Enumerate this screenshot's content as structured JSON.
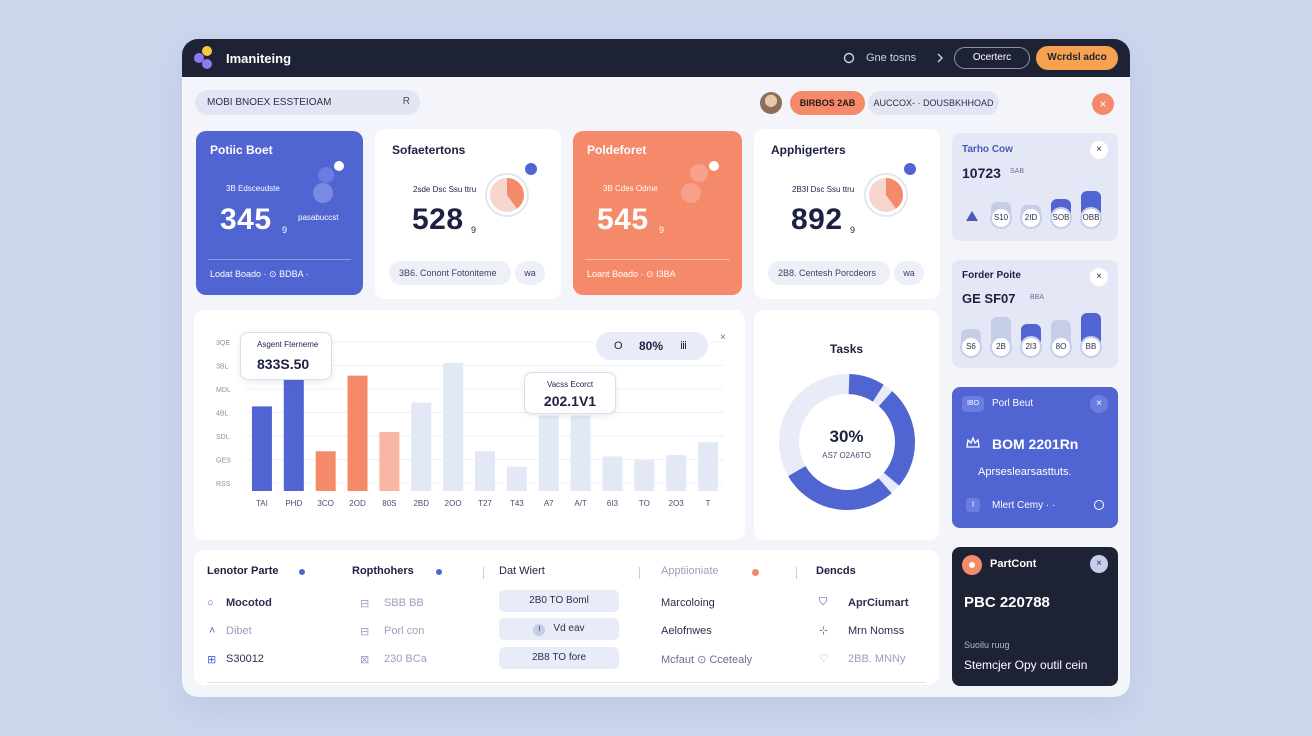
{
  "topbar": {
    "brand": "Imaniteing",
    "link": "Gne tosns",
    "outline_button": "Ocerterc",
    "accent_button": "Wcrdsl adco"
  },
  "toolbar": {
    "search_value": "MOBI BNOEX ESSTEIOAM",
    "search_icon_label": "R",
    "pill_orange": "BIRBOS 2AB",
    "pill_grey": "AUCCOX- · DOUSBKHHOAD",
    "pill_close": "×"
  },
  "stats": [
    {
      "title": "Potiic Boet",
      "sub": "3B Edsceudste",
      "value": "345",
      "unit": "9",
      "aside": "pasabuccst",
      "footer": "Lodat Boado  ·  ⊙  BDBA  ·"
    },
    {
      "title": "Sofaetertons",
      "sub": "2sde Dsc Ssu ttru",
      "value": "528",
      "unit": "9",
      "footer_left": "3B6.  Conont Fotoniteme",
      "footer_right": "wa"
    },
    {
      "title": "Poldeforet",
      "sub": "3B Cdes Odme",
      "value": "545",
      "unit": "9",
      "footer": "Loant Boado  ·  ⊙  I3BA"
    },
    {
      "title": "Apphigerters",
      "sub": "2B3I Dsc Ssu ttru",
      "value": "892",
      "unit": "9",
      "footer_left": "2B8.  Centesh Porcdeors",
      "footer_right": "wa"
    }
  ],
  "chart": {
    "legend_box_label": "Asgent Fterneme",
    "legend_box_value": "833S.50",
    "tooltip_label": "Vacss Ecorct",
    "tooltip_value": "202.1V1",
    "percent_pill": {
      "left": "O",
      "value": "80%",
      "right": "ⅲ"
    },
    "close": "×"
  },
  "chart_data": {
    "type": "bar",
    "categories": [
      "TAI",
      "PHD",
      "3CO",
      "2OD",
      "80S",
      "2BD",
      "2OO",
      "T27",
      "T43",
      "A7",
      "A/T",
      "6I3",
      "TO",
      "2O3",
      "T"
    ],
    "values": [
      66,
      88,
      31,
      90,
      46,
      69,
      100,
      31,
      19,
      59,
      59,
      27,
      24,
      28,
      38
    ],
    "colors": [
      "#5064d2",
      "#5064d2",
      "#f58a6a",
      "#f58a6a",
      "#f9b6a3",
      "#e3e8f7",
      "#e3e8f7",
      "#e3e8f7",
      "#e3e8f7",
      "#e3e8f7",
      "#e3e8f7",
      "#e3e8f7",
      "#e3e8f7",
      "#e3e8f7",
      "#e3e8f7"
    ],
    "yticks": [
      "RSS",
      "GES",
      "SDL",
      "4BL",
      "MDL",
      "3BL",
      "3QE"
    ],
    "ylim": [
      0,
      110
    ]
  },
  "tasks": {
    "title": "Tasks",
    "percent": "30%",
    "sub": "AS7 O2A6TO",
    "progress": 0.3
  },
  "right_panel": {
    "card1": {
      "title": "Tarho Cow",
      "value": "10723",
      "unit": "SAB",
      "dots": [
        "S10",
        "2ID",
        "SOB",
        "OBB"
      ],
      "bar_levels": [
        0.45,
        0.32,
        0.55,
        0.8
      ]
    },
    "card2": {
      "title": "Forder Poite",
      "value": "GE SF07",
      "unit": "BBA",
      "dots": [
        "S6",
        "2B",
        "2I3",
        "8O",
        "BB"
      ],
      "bar_levels": [
        0.35,
        0.7,
        0.5,
        0.6,
        0.8
      ]
    },
    "card3": {
      "tag": "IBO",
      "title": "Porl Beut",
      "line1": "BOM 2201Rn",
      "line2": "Aprseslearsasttuts.",
      "footer_tag": "I",
      "footer": "Mlert Cemy  ·  ·",
      "close": "×"
    },
    "card4": {
      "title": "PartCont",
      "value": "PBC 220788",
      "label": "Suoilu ruug",
      "footer": "Stemcjer Opy outil cein",
      "close": "×"
    }
  },
  "table": {
    "headers": [
      "Lenotor Parte",
      "Ropthohers",
      "Dat Wiert",
      "Apptiioniate",
      "Dencds"
    ],
    "rows": [
      {
        "c1_icon": "○",
        "c1": "Mocotod",
        "c2_icon": "⊟",
        "c2": "SBB BB",
        "c3": "2B0 TO Boml",
        "c4": "Marcoloing",
        "c5_icon": "⛉",
        "c5": "AprCiumart"
      },
      {
        "c1_icon": "˄",
        "c1": "Dibet",
        "c2_icon": "⊟",
        "c2": "Porl con",
        "c3_icon": "I",
        "c3": "Vd eav",
        "c4": "Aelofnwes",
        "c5_icon": "⊹",
        "c5": "Mrn Nomss"
      },
      {
        "c1_icon": "⊞",
        "c1": "S30012",
        "c2_icon": "⊠",
        "c2": "230 BCa",
        "c3": "2B8 TO fore",
        "c4": "Mcfaut ⊙ Ccetealy",
        "c5_icon": "♡",
        "c5": "2BB. MNNy"
      }
    ]
  },
  "colors": {
    "accent_blue": "#5064d2",
    "accent_orange": "#f58a6a",
    "dark": "#1e2235",
    "panel": "#f4f5fa"
  }
}
